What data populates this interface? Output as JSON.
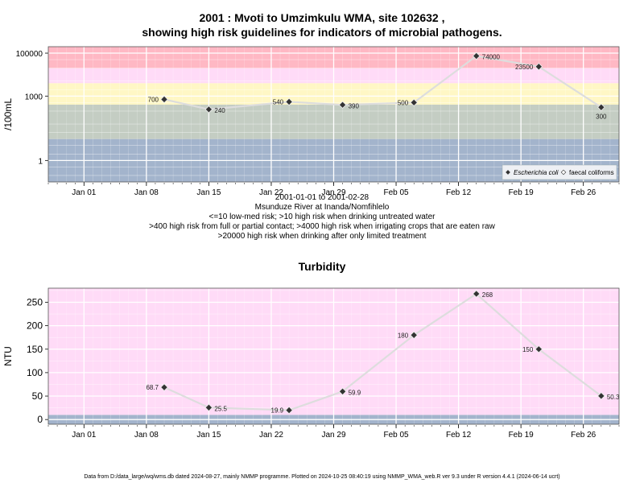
{
  "header": {
    "title_line1": "2001 : Mvoti to Umzimkulu WMA, site 102632 ,",
    "title_line2": "showing high risk guidelines for indicators of microbial pathogens."
  },
  "info": {
    "date_range": "2001-01-01 to 2001-02-28",
    "location": "Msunduze River at Inanda/Nomfihlelo",
    "risk_line1": "<=10 low-med risk; >10 high risk when drinking untreated water",
    "risk_line2": ">400 high risk from full or partial contact; >4000 high risk when irrigating crops that are eaten raw",
    "risk_line3": ">20000 high risk when drinking after only limited treatment"
  },
  "footer": "Data from D:/data_large/wq/wms.db dated 2024-08-27, mainly NMMP programme. Plotted on 2024-10-25 08:40:19 using NMMP_WMA_web.R ver 9.3 under R version 4.4.1 (2024-06-14 ucrt)",
  "chart_data": [
    {
      "type": "line",
      "title": "",
      "ylabel": "/100mL",
      "yscale": "log",
      "ylim": [
        0.1,
        200000
      ],
      "y_ticks": [
        1,
        1000,
        100000
      ],
      "y_tick_labels": [
        "1",
        "1000",
        "100000"
      ],
      "xlim": [
        "2000-12-28",
        "2001-03-02"
      ],
      "x_ticks": [
        "2001-01-01",
        "2001-01-08",
        "2001-01-15",
        "2001-01-22",
        "2001-01-29",
        "2001-02-05",
        "2001-02-12",
        "2001-02-19",
        "2001-02-26"
      ],
      "x_tick_labels": [
        "Jan 01",
        "Jan 08",
        "Jan 15",
        "Jan 22",
        "Jan 29",
        "Feb 05",
        "Feb 12",
        "Feb 19",
        "Feb 26"
      ],
      "bands": [
        {
          "from": 0.1,
          "to": 10,
          "color": "#a3b4cc"
        },
        {
          "from": 10,
          "to": 400,
          "color": "#c4cdc3"
        },
        {
          "from": 400,
          "to": 4000,
          "color": "#fff7c5"
        },
        {
          "from": 4000,
          "to": 20000,
          "color": "#ffdbf7"
        },
        {
          "from": 20000,
          "to": 200000,
          "color": "#ffb8c4"
        }
      ],
      "grid": true,
      "legend_position": "bottom-right",
      "legend": [
        "Escherichia coli",
        "faecal coliforms"
      ],
      "series": [
        {
          "name": "Escherichia coli",
          "color": "#dddddd",
          "points": [
            {
              "x": "2001-01-10",
              "y": 700,
              "label": "700"
            },
            {
              "x": "2001-01-15",
              "y": 240,
              "label": "240"
            },
            {
              "x": "2001-01-24",
              "y": 540,
              "label": "540"
            },
            {
              "x": "2001-01-30",
              "y": 390,
              "label": "390"
            },
            {
              "x": "2001-02-07",
              "y": 500,
              "label": "500"
            },
            {
              "x": "2001-02-14",
              "y": 74000,
              "label": "74000"
            },
            {
              "x": "2001-02-21",
              "y": 23500,
              "label": "23500"
            },
            {
              "x": "2001-02-28",
              "y": 300,
              "label": "300"
            }
          ]
        }
      ]
    },
    {
      "type": "line",
      "title": "Turbidity",
      "ylabel": "NTU",
      "ylim": [
        -10,
        280
      ],
      "y_ticks": [
        0,
        50,
        100,
        150,
        200,
        250
      ],
      "y_tick_labels": [
        "0",
        "50",
        "100",
        "150",
        "200",
        "250"
      ],
      "xlim": [
        "2000-12-28",
        "2001-03-02"
      ],
      "x_ticks": [
        "2001-01-01",
        "2001-01-08",
        "2001-01-15",
        "2001-01-22",
        "2001-01-29",
        "2001-02-05",
        "2001-02-12",
        "2001-02-19",
        "2001-02-26"
      ],
      "x_tick_labels": [
        "Jan 01",
        "Jan 08",
        "Jan 15",
        "Jan 22",
        "Jan 29",
        "Feb 05",
        "Feb 12",
        "Feb 19",
        "Feb 26"
      ],
      "bands": [
        {
          "from": -10,
          "to": 10,
          "color": "#a3b4cc"
        },
        {
          "from": 10,
          "to": 280,
          "color": "#ffdbf7"
        }
      ],
      "grid": true,
      "series": [
        {
          "name": "",
          "color": "#dddddd",
          "points": [
            {
              "x": "2001-01-10",
              "y": 68.7,
              "label": "68.7"
            },
            {
              "x": "2001-01-15",
              "y": 25.5,
              "label": "25.5"
            },
            {
              "x": "2001-01-24",
              "y": 19.9,
              "label": "19.9"
            },
            {
              "x": "2001-01-30",
              "y": 59.9,
              "label": "59.9"
            },
            {
              "x": "2001-02-07",
              "y": 180,
              "label": "180"
            },
            {
              "x": "2001-02-14",
              "y": 268,
              "label": "268"
            },
            {
              "x": "2001-02-21",
              "y": 150,
              "label": "150"
            },
            {
              "x": "2001-02-28",
              "y": 50.3,
              "label": "50.3"
            }
          ]
        }
      ]
    }
  ]
}
